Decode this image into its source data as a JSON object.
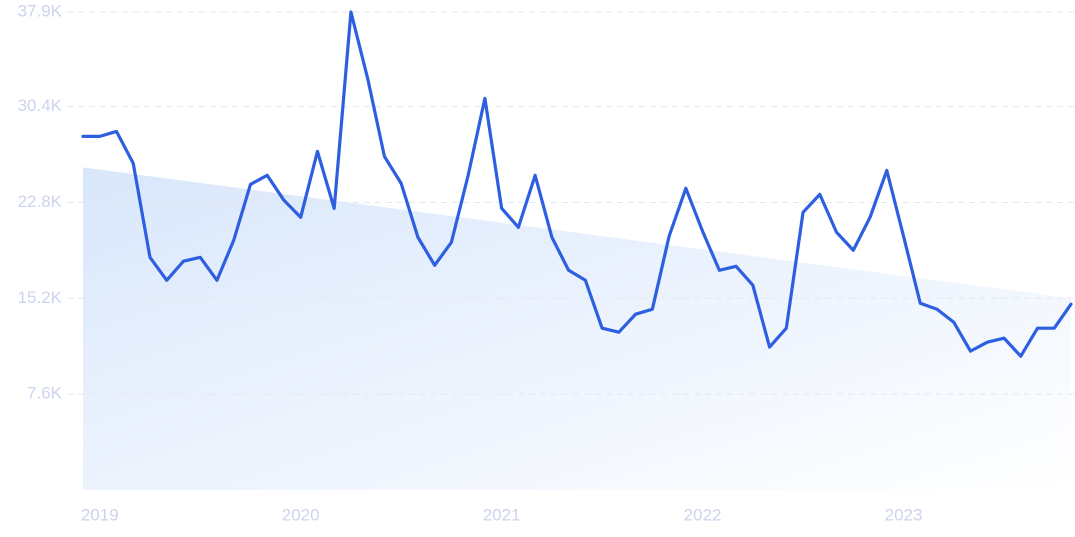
{
  "chart_data": {
    "type": "line",
    "categories": [
      null,
      "2019",
      null,
      null,
      null,
      null,
      null,
      null,
      null,
      null,
      null,
      null,
      null,
      "2020",
      null,
      null,
      null,
      null,
      null,
      null,
      null,
      null,
      null,
      null,
      null,
      "2021",
      null,
      null,
      null,
      null,
      null,
      null,
      null,
      null,
      null,
      null,
      null,
      "2022",
      null,
      null,
      null,
      null,
      null,
      null,
      null,
      null,
      null,
      null,
      null,
      "2023",
      null,
      null,
      null,
      null,
      null,
      null,
      null,
      null,
      null,
      null
    ],
    "series": [
      {
        "color": "#2d5fe0",
        "values": [
          28040,
          28040,
          28430,
          25900,
          18450,
          16630,
          18140,
          18450,
          16630,
          19800,
          24230,
          24950,
          22970,
          21620,
          26850,
          22330,
          37900,
          32630,
          26450,
          24310,
          20040,
          17820,
          19640,
          24950,
          31050,
          22330,
          20830,
          24950,
          20040,
          17420,
          16630,
          12830,
          12510,
          13940,
          14330,
          20120,
          23920,
          20510,
          17420,
          17740,
          16240,
          11330,
          12830,
          22020,
          23440,
          20430,
          19010,
          21620,
          25340,
          20120,
          14810,
          14330,
          13300,
          11010,
          11720,
          12040,
          10610,
          12830,
          12830,
          14730
        ]
      }
    ],
    "trend": {
      "values": [
        25580,
        15210
      ]
    },
    "ylim": [
      0,
      37900
    ],
    "yticks": [
      {
        "value": 7600,
        "label": "7.6K"
      },
      {
        "value": 15200,
        "label": "15.2K"
      },
      {
        "value": 22800,
        "label": "22.8K"
      },
      {
        "value": 30400,
        "label": "30.4K"
      },
      {
        "value": 37900,
        "label": "37.9K"
      }
    ],
    "grid": true
  }
}
